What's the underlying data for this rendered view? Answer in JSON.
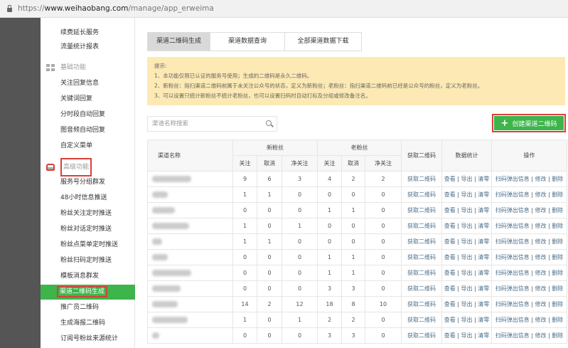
{
  "browser": {
    "url_prefix": "https://",
    "url_domain": "www.weihaobang.com",
    "url_path": "/manage/app_erweima"
  },
  "sidebar": {
    "top_items": [
      "续费延长服务",
      "流量统计报表"
    ],
    "basic": {
      "title": "基础功能",
      "icon": "grid-icon",
      "items": [
        "关注回复信息",
        "关键词回复",
        "分时段自动回复",
        "图音频自动回复",
        "自定义菜单"
      ]
    },
    "advanced": {
      "title": "高级功能",
      "icon": "tray-icon",
      "items": [
        "服务号分组群发",
        "48小时信息推送",
        "粉丝关注定时推送",
        "粉丝对话定时推送",
        "粉丝点菜单定时推送",
        "粉丝扫码定时推送",
        "模板消息群发",
        "渠道二维码生成",
        "推广员二维码",
        "生成海报二维码",
        "订阅号粉丝来源统计"
      ],
      "active_index": 7
    }
  },
  "tabs": [
    {
      "label": "渠道二维码生成",
      "active": true
    },
    {
      "label": "渠道数据查询",
      "active": false
    },
    {
      "label": "全部渠道数据下载",
      "active": false
    }
  ],
  "notice": {
    "title": "提示:",
    "lines": [
      "1、本功能仅限已认证的服务号使用；生成的二维码是永久二维码。",
      "2、新粉丝：指扫渠道二维码前属于未关注公众号的状态，定义为新粉丝；老粉丝：指扫渠道二维码前已经是公众号的粉丝，定义为老粉丝。",
      "3、可以设置只统计新粉丝不统计老粉丝，也可以设置扫码时自动打标及分组或修改备注名。"
    ]
  },
  "search": {
    "placeholder": "渠道名称搜索"
  },
  "create_button": {
    "label": "创建渠道二维码",
    "icon": "plus-icon"
  },
  "colors": {
    "accent": "#3db54a",
    "highlight_box": "#d9403a",
    "notice_bg": "#fde9b3"
  },
  "table": {
    "headers": {
      "name": "渠道名称",
      "new_fans": "新粉丝",
      "old_fans": "老粉丝",
      "get_qr": "获取二维码",
      "stats": "数据统计",
      "ops": "操作",
      "sub": [
        "关注",
        "取消",
        "净关注",
        "关注",
        "取消",
        "净关注"
      ]
    },
    "links": {
      "get_qr": "获取二维码",
      "view": "查看",
      "export": "导出",
      "clear": "清零",
      "popup": "扫码弹出信息",
      "edit": "修改",
      "delete": "删除",
      "sep": "|"
    },
    "rows": [
      [
        9,
        6,
        3,
        4,
        2,
        2
      ],
      [
        1,
        1,
        0,
        0,
        0,
        0
      ],
      [
        0,
        0,
        0,
        1,
        1,
        0
      ],
      [
        1,
        0,
        1,
        0,
        0,
        0
      ],
      [
        1,
        1,
        0,
        0,
        0,
        0
      ],
      [
        0,
        0,
        0,
        1,
        1,
        0
      ],
      [
        0,
        0,
        0,
        1,
        1,
        0
      ],
      [
        0,
        0,
        0,
        3,
        3,
        0
      ],
      [
        14,
        2,
        12,
        18,
        8,
        10
      ],
      [
        1,
        0,
        1,
        2,
        2,
        0
      ],
      [
        0,
        0,
        0,
        3,
        3,
        0
      ]
    ]
  }
}
